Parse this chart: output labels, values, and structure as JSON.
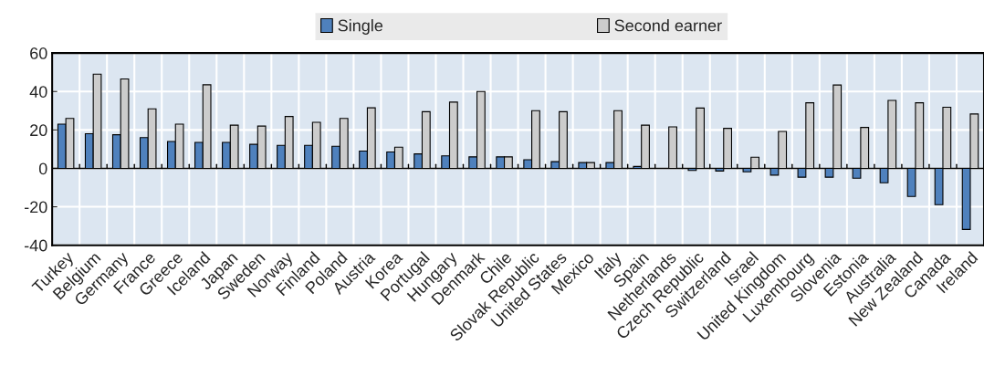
{
  "chart_data": {
    "type": "bar",
    "categories": [
      "Turkey",
      "Belgium",
      "Germany",
      "France",
      "Greece",
      "Iceland",
      "Japan",
      "Sweden",
      "Norway",
      "Finland",
      "Poland",
      "Austria",
      "Korea",
      "Portugal",
      "Hungary",
      "Denmark",
      "Chile",
      "Slovak Republic",
      "United States",
      "Mexico",
      "Italy",
      "Spain",
      "Netherlands",
      "Czech Republic",
      "Switzerland",
      "Israel",
      "United Kingdom",
      "Luxembourg",
      "Slovenia",
      "Estonia",
      "Australia",
      "New Zealand",
      "Canada",
      "Ireland"
    ],
    "series": [
      {
        "name": "Single",
        "color": "#4f81bd",
        "values": [
          23,
          18,
          17.5,
          16,
          14,
          13.5,
          13.5,
          12.5,
          12,
          12,
          11.5,
          9,
          8.5,
          7.5,
          6.5,
          6,
          6,
          4.5,
          3.5,
          3,
          3,
          1,
          null,
          -1.1,
          -1.4,
          -1.8,
          -3.5,
          -4.6,
          -4.6,
          -5.1,
          -7.5,
          -14.6,
          -18.9,
          -31.8
        ]
      },
      {
        "name": "Second earner",
        "color": "#cccccc",
        "values": [
          26,
          49,
          46.5,
          31,
          23,
          43.5,
          22.5,
          22,
          27,
          24,
          26,
          31.5,
          11,
          29.5,
          34.5,
          40,
          6,
          30,
          29.5,
          3,
          30,
          22.5,
          21.6,
          31.4,
          20.8,
          5.8,
          19.2,
          34.1,
          43.4,
          21.3,
          35.4,
          34.1,
          31.8,
          28.3
        ]
      }
    ],
    "ylim": [
      -40,
      60
    ],
    "yticks": [
      -40,
      -20,
      0,
      20,
      40,
      60
    ],
    "grid": true,
    "legend": "top"
  }
}
